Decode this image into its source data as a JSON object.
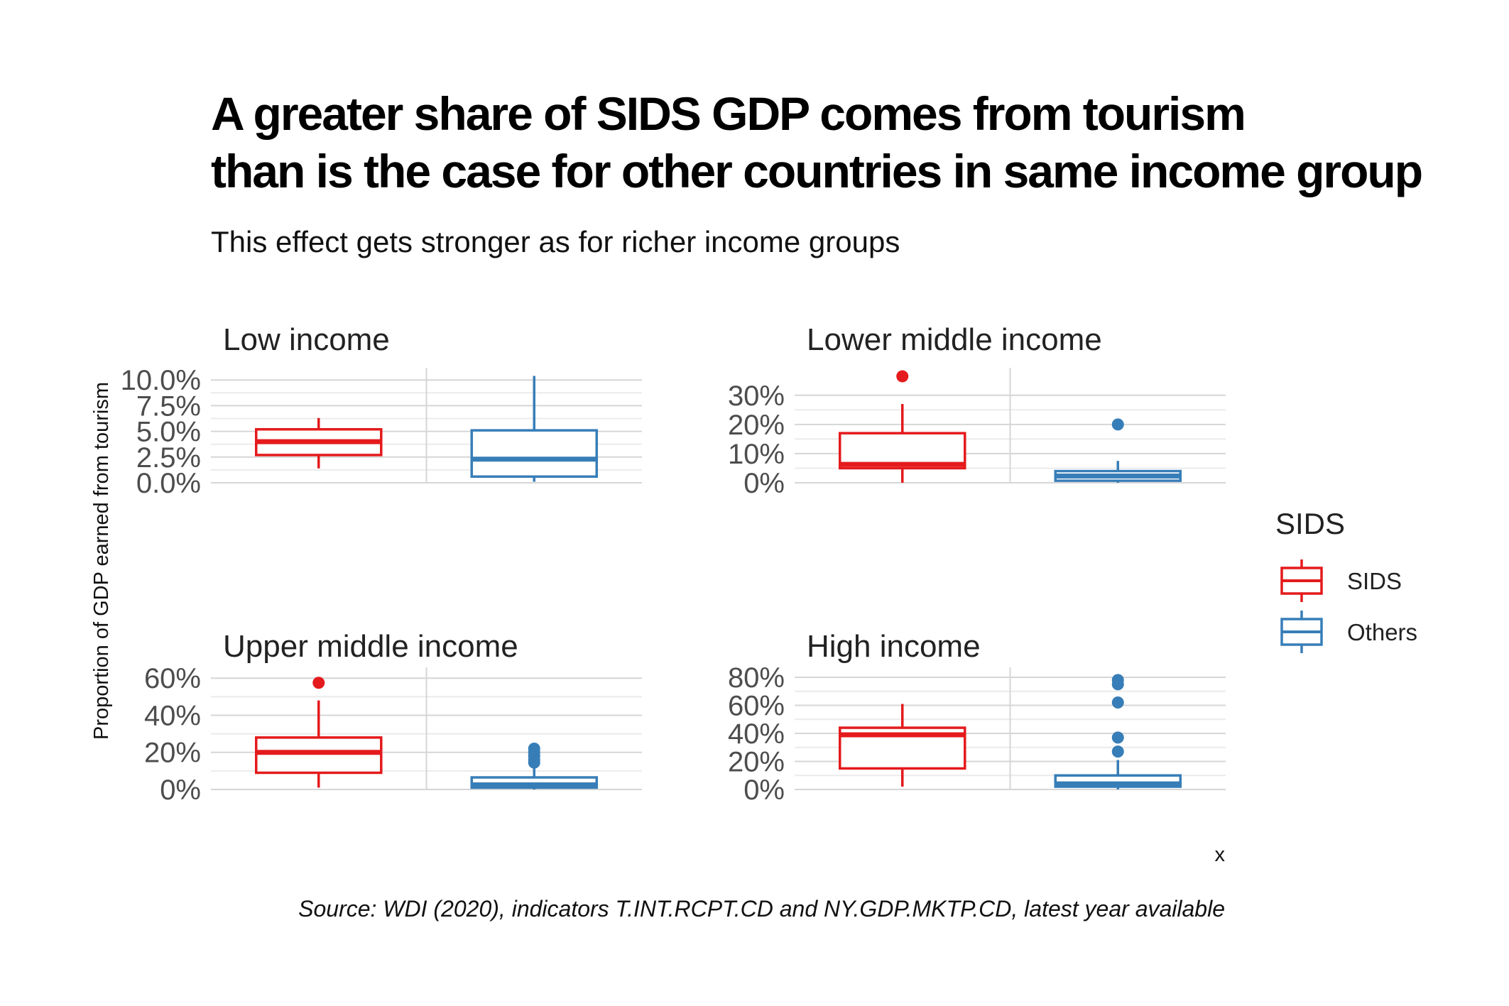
{
  "title_line1": "A greater share of SIDS GDP comes from tourism",
  "title_line2": "than is the case for other countries in same income group",
  "subtitle": "This effect gets stronger as for richer income groups",
  "caption": "Source: WDI (2020), indicators T.INT.RCPT.CD and NY.GDP.MKTP.CD, latest year available",
  "chart_data": {
    "type": "boxplot",
    "ylabel": "Proportion of GDP earned from tourism",
    "xlabel": "x",
    "legend": {
      "title": "SIDS",
      "position": "right",
      "items": [
        {
          "name": "SIDS",
          "color": "#e41a1c"
        },
        {
          "name": "Others",
          "color": "#377eb8"
        }
      ]
    },
    "grid": true,
    "panels": [
      {
        "name": "Low income",
        "ylim": [
          0,
          10.5
        ],
        "ticks": [
          0,
          2.5,
          5,
          7.5,
          10
        ],
        "tick_labels": [
          "0.0%",
          "2.5%",
          "5.0%",
          "7.5%",
          "10.0%"
        ],
        "boxes": [
          {
            "group": "SIDS",
            "whisker_low": 1.4,
            "q1": 2.7,
            "median": 4.0,
            "q3": 5.2,
            "whisker_high": 6.3,
            "outliers": []
          },
          {
            "group": "Others",
            "whisker_low": 0.1,
            "q1": 0.6,
            "median": 2.3,
            "q3": 5.1,
            "whisker_high": 10.4,
            "outliers": []
          }
        ]
      },
      {
        "name": "Lower middle income",
        "ylim": [
          0,
          37
        ],
        "ticks": [
          0,
          10,
          20,
          30
        ],
        "tick_labels": [
          "0%",
          "10%",
          "20%",
          "30%"
        ],
        "boxes": [
          {
            "group": "SIDS",
            "whisker_low": 0,
            "q1": 5,
            "median": 6.3,
            "q3": 17,
            "whisker_high": 27,
            "outliers": [
              36.5
            ]
          },
          {
            "group": "Others",
            "whisker_low": 0,
            "q1": 0.7,
            "median": 2.3,
            "q3": 4,
            "whisker_high": 7.5,
            "outliers": [
              20
            ]
          }
        ]
      },
      {
        "name": "Upper middle income",
        "ylim": [
          0,
          62
        ],
        "ticks": [
          0,
          20,
          40,
          60
        ],
        "tick_labels": [
          "0%",
          "20%",
          "40%",
          "60%"
        ],
        "boxes": [
          {
            "group": "SIDS",
            "whisker_low": 1,
            "q1": 9,
            "median": 20,
            "q3": 28,
            "whisker_high": 48,
            "outliers": [
              57.5
            ]
          },
          {
            "group": "Others",
            "whisker_low": 0,
            "q1": 1,
            "median": 2.5,
            "q3": 6.5,
            "whisker_high": 13,
            "outliers": [
              14.5,
              16,
              18,
              20,
              22
            ]
          }
        ]
      },
      {
        "name": "High income",
        "ylim": [
          0,
          82
        ],
        "ticks": [
          0,
          20,
          40,
          60,
          80
        ],
        "tick_labels": [
          "0%",
          "20%",
          "40%",
          "60%",
          "80%"
        ],
        "boxes": [
          {
            "group": "SIDS",
            "whisker_low": 2,
            "q1": 15,
            "median": 39,
            "q3": 44,
            "whisker_high": 61,
            "outliers": []
          },
          {
            "group": "Others",
            "whisker_low": 0,
            "q1": 2,
            "median": 4,
            "q3": 10,
            "whisker_high": 21,
            "outliers": [
              27,
              37,
              62,
              75,
              78
            ]
          }
        ]
      }
    ]
  }
}
